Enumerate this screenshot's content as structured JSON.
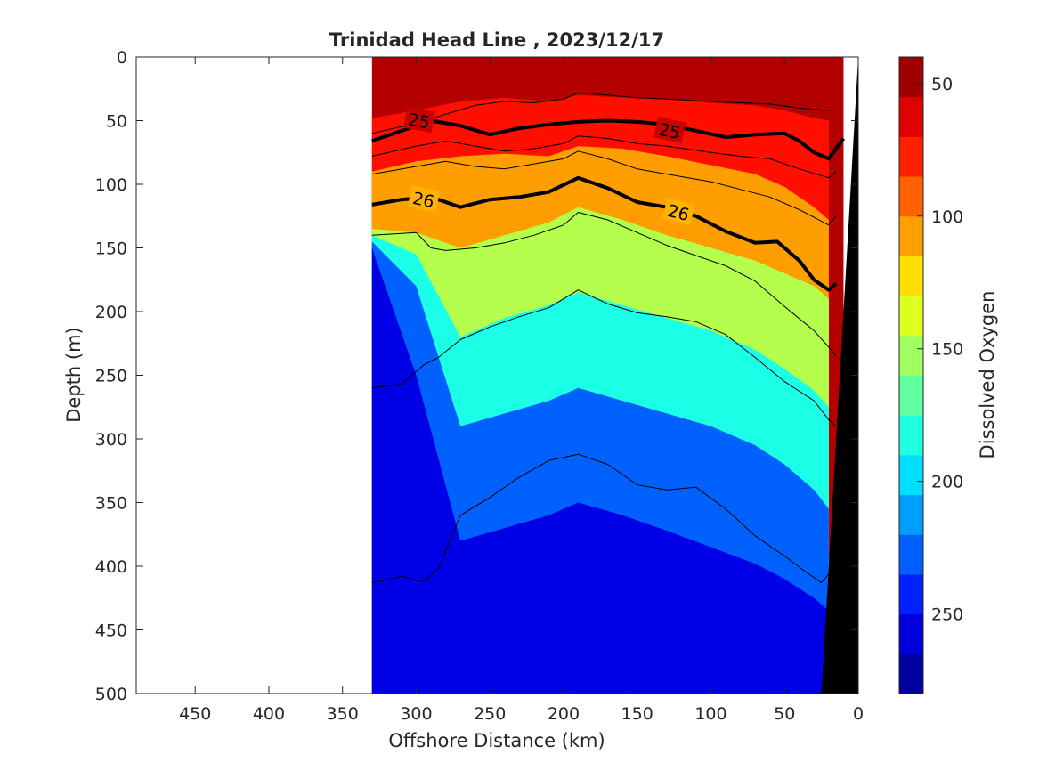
{
  "title": "Trinidad Head Line , 2023/12/17",
  "xlabel": "Offshore Distance (km)",
  "ylabel": "Depth (m)",
  "colorbar_label": "Dissolved Oxygen",
  "x_ticks": [
    "450",
    "400",
    "350",
    "300",
    "250",
    "200",
    "150",
    "100",
    "50",
    "0"
  ],
  "y_ticks": [
    "0",
    "50",
    "100",
    "150",
    "200",
    "250",
    "300",
    "350",
    "400",
    "450",
    "500"
  ],
  "colorbar_ticks": [
    "250",
    "200",
    "150",
    "100",
    "50"
  ],
  "contour_labels": [
    "25",
    "25",
    "26",
    "26"
  ],
  "chart_data": {
    "type": "heatmap",
    "title": "Trinidad Head Line , 2023/12/17",
    "xlabel": "Offshore Distance (km)",
    "ylabel": "Depth (m)",
    "xlim": [
      490,
      0
    ],
    "ylim": [
      500,
      0
    ],
    "x_reversed": true,
    "y_reversed": true,
    "grid": false,
    "colormap": "jet",
    "colorbar": {
      "label": "Dissolved Oxygen",
      "range": [
        20,
        260
      ],
      "levels": 16,
      "ticks": [
        50,
        100,
        150,
        200,
        250
      ]
    },
    "data_extent_km": [
      330,
      10
    ],
    "oxygen_band_depths": {
      "x_km": [
        330,
        300,
        270,
        240,
        210,
        190,
        160,
        130,
        100,
        70,
        50,
        30,
        20
      ],
      "iso_240": [
        48,
        42,
        35,
        32,
        35,
        30,
        32,
        33,
        36,
        38,
        42,
        48,
        50
      ],
      "iso_200": [
        90,
        82,
        78,
        76,
        78,
        70,
        72,
        78,
        85,
        92,
        102,
        118,
        128
      ],
      "iso_150": [
        135,
        138,
        150,
        140,
        130,
        118,
        128,
        140,
        150,
        160,
        170,
        180,
        190
      ],
      "iso_100": [
        140,
        155,
        220,
        205,
        195,
        185,
        195,
        205,
        215,
        230,
        245,
        262,
        275
      ],
      "iso_60": [
        145,
        180,
        290,
        280,
        270,
        260,
        270,
        280,
        290,
        305,
        320,
        340,
        355
      ],
      "iso_40": [
        150,
        250,
        380,
        370,
        360,
        350,
        360,
        372,
        385,
        398,
        410,
        425,
        435
      ]
    },
    "sigma_contours": [
      {
        "level": "25",
        "bold": true,
        "x_km": [
          330,
          305,
          290,
          270,
          250,
          230,
          210,
          190,
          170,
          150,
          130,
          110,
          90,
          70,
          50,
          40,
          30,
          20,
          10
        ],
        "depth_m": [
          66,
          56,
          50,
          54,
          61,
          56,
          53,
          51,
          50,
          51,
          53,
          58,
          63,
          61,
          60,
          66,
          75,
          80,
          64
        ]
      },
      {
        "level": "26",
        "bold": true,
        "x_km": [
          330,
          310,
          290,
          270,
          250,
          230,
          210,
          190,
          170,
          150,
          130,
          110,
          90,
          70,
          55,
          40,
          30,
          20,
          15
        ],
        "depth_m": [
          116,
          112,
          110,
          118,
          112,
          110,
          106,
          95,
          103,
          114,
          118,
          125,
          137,
          146,
          145,
          160,
          175,
          183,
          178
        ]
      },
      {
        "level": "",
        "bold": false,
        "x_km": [
          330,
          300,
          280,
          260,
          240,
          220,
          200,
          190,
          170,
          150,
          130,
          100,
          80,
          60,
          40,
          20
        ],
        "depth_m": [
          60,
          52,
          45,
          38,
          35,
          36,
          33,
          28,
          30,
          32,
          33,
          35,
          36,
          37,
          40,
          42
        ]
      },
      {
        "level": "",
        "bold": false,
        "x_km": [
          330,
          300,
          280,
          260,
          240,
          220,
          200,
          190,
          170,
          150,
          130,
          100,
          80,
          60,
          40,
          20,
          15
        ],
        "depth_m": [
          78,
          70,
          66,
          70,
          74,
          72,
          68,
          62,
          64,
          68,
          70,
          75,
          78,
          80,
          88,
          95,
          90
        ]
      },
      {
        "level": "",
        "bold": false,
        "x_km": [
          330,
          300,
          280,
          260,
          240,
          220,
          200,
          190,
          170,
          150,
          130,
          100,
          80,
          60,
          40,
          20,
          15
        ],
        "depth_m": [
          92,
          86,
          82,
          86,
          88,
          84,
          80,
          74,
          80,
          88,
          92,
          98,
          104,
          110,
          120,
          132,
          125
        ]
      },
      {
        "level": "",
        "bold": false,
        "x_km": [
          330,
          300,
          290,
          280,
          260,
          240,
          220,
          200,
          190,
          170,
          150,
          130,
          110,
          90,
          70,
          50,
          30,
          20,
          15
        ],
        "depth_m": [
          140,
          138,
          150,
          152,
          150,
          146,
          140,
          132,
          122,
          128,
          138,
          148,
          156,
          164,
          176,
          196,
          215,
          228,
          235
        ]
      },
      {
        "level": "",
        "bold": false,
        "x_km": [
          330,
          310,
          295,
          285,
          270,
          250,
          230,
          210,
          190,
          170,
          150,
          130,
          110,
          90,
          70,
          50,
          30,
          20,
          15
        ],
        "depth_m": [
          260,
          257,
          242,
          236,
          222,
          212,
          204,
          197,
          183,
          194,
          201,
          204,
          208,
          218,
          236,
          255,
          270,
          285,
          290
        ]
      },
      {
        "level": "",
        "bold": false,
        "x_km": [
          330,
          310,
          295,
          285,
          270,
          250,
          230,
          210,
          190,
          170,
          150,
          130,
          110,
          90,
          70,
          50,
          35,
          25,
          20
        ],
        "depth_m": [
          413,
          408,
          412,
          402,
          360,
          346,
          330,
          317,
          312,
          320,
          336,
          340,
          338,
          355,
          376,
          392,
          405,
          413,
          406
        ]
      }
    ],
    "bathymetry": {
      "fill": "#000000",
      "x_km": [
        0,
        0,
        25
      ],
      "depth_m": [
        0,
        500,
        500
      ]
    }
  }
}
